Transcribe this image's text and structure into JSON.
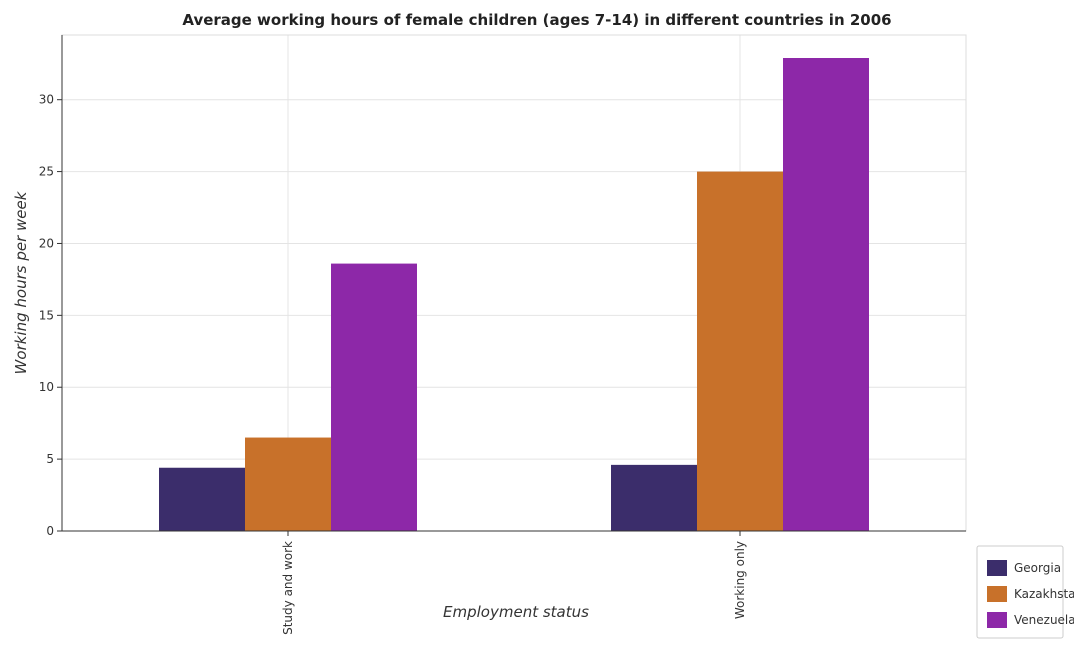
{
  "chart_data": {
    "type": "bar",
    "title": "Average working hours of female children (ages 7-14) in different countries in 2006",
    "xlabel": "Employment status",
    "ylabel": "Working hours per week",
    "categories": [
      "Study and work",
      "Working only"
    ],
    "series": [
      {
        "name": "Georgia",
        "color": "#3b2d6b",
        "values": [
          4.4,
          4.6
        ]
      },
      {
        "name": "Kazakhstan",
        "color": "#c8712a",
        "values": [
          6.5,
          25.0
        ]
      },
      {
        "name": "Venezuela",
        "color": "#8d28a8",
        "values": [
          18.6,
          32.9
        ]
      }
    ],
    "ylim": [
      0,
      34.5
    ],
    "yticks": [
      0,
      5,
      10,
      15,
      20,
      25,
      30
    ],
    "grid": true,
    "legend": "bottom-right"
  }
}
